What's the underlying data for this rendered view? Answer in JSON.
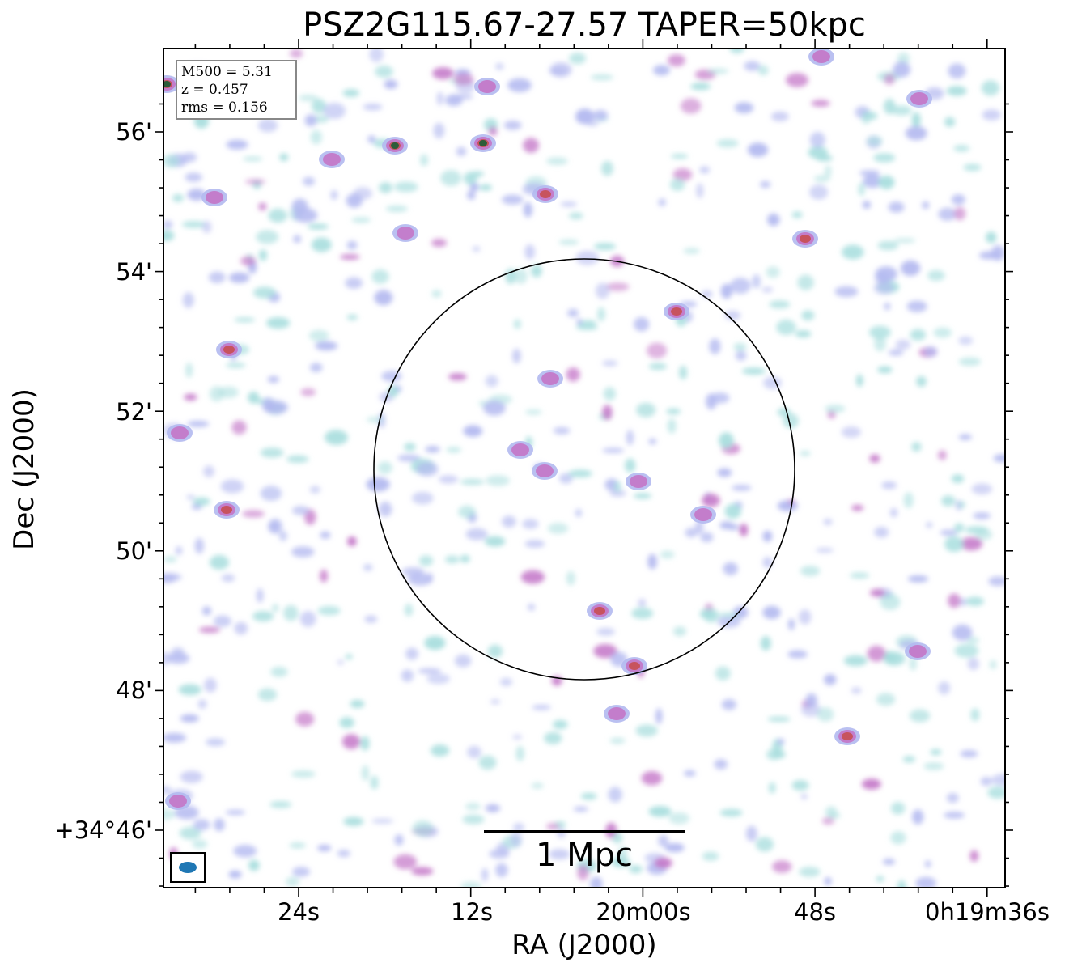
{
  "title": "PSZ2G115.67-27.57 TAPER=50kpc",
  "xlabel": "RA (J2000)",
  "ylabel": "Dec (J2000)",
  "info": {
    "m500": "M500 = 5.31",
    "z": "z = 0.457",
    "rms": "rms = 0.156"
  },
  "scale_bar": {
    "label": "1 Mpc"
  },
  "y_ticks": [
    "56'",
    "54'",
    "52'",
    "50'",
    "48'",
    "+34°46'"
  ],
  "x_ticks": [
    "24s",
    "12s",
    "20m00s",
    "48s",
    "0h19m36s"
  ],
  "colors": {
    "faint": "#a9dede",
    "low": "#b3b9f0",
    "mid": "#c477c8",
    "high": "#c84f52",
    "peak": "#1c5d36",
    "beam": "#1f77b4",
    "circle": "#000000"
  },
  "sources": [
    {
      "x": 488,
      "y": 180,
      "level": "peak"
    },
    {
      "x": 597,
      "y": 177,
      "level": "peak"
    },
    {
      "x": 206,
      "y": 104,
      "level": "peak"
    },
    {
      "x": 674,
      "y": 240,
      "level": "high"
    },
    {
      "x": 283,
      "y": 432,
      "level": "high"
    },
    {
      "x": 280,
      "y": 630,
      "level": "high"
    },
    {
      "x": 836,
      "y": 385,
      "level": "high"
    },
    {
      "x": 995,
      "y": 295,
      "level": "high"
    },
    {
      "x": 741,
      "y": 755,
      "level": "high"
    },
    {
      "x": 784,
      "y": 823,
      "level": "high"
    },
    {
      "x": 1047,
      "y": 910,
      "level": "high"
    },
    {
      "x": 680,
      "y": 468,
      "level": "mid"
    },
    {
      "x": 643,
      "y": 556,
      "level": "mid"
    },
    {
      "x": 673,
      "y": 582,
      "level": "mid"
    },
    {
      "x": 869,
      "y": 636,
      "level": "mid"
    },
    {
      "x": 789,
      "y": 595,
      "level": "mid"
    },
    {
      "x": 762,
      "y": 882,
      "level": "mid"
    },
    {
      "x": 265,
      "y": 244,
      "level": "mid"
    },
    {
      "x": 410,
      "y": 197,
      "level": "mid"
    },
    {
      "x": 222,
      "y": 535,
      "level": "mid"
    },
    {
      "x": 1136,
      "y": 122,
      "level": "mid"
    },
    {
      "x": 1134,
      "y": 805,
      "level": "mid"
    },
    {
      "x": 220,
      "y": 990,
      "level": "mid"
    },
    {
      "x": 1015,
      "y": 70,
      "level": "mid"
    },
    {
      "x": 501,
      "y": 288,
      "level": "mid"
    },
    {
      "x": 602,
      "y": 107,
      "level": "mid"
    }
  ]
}
